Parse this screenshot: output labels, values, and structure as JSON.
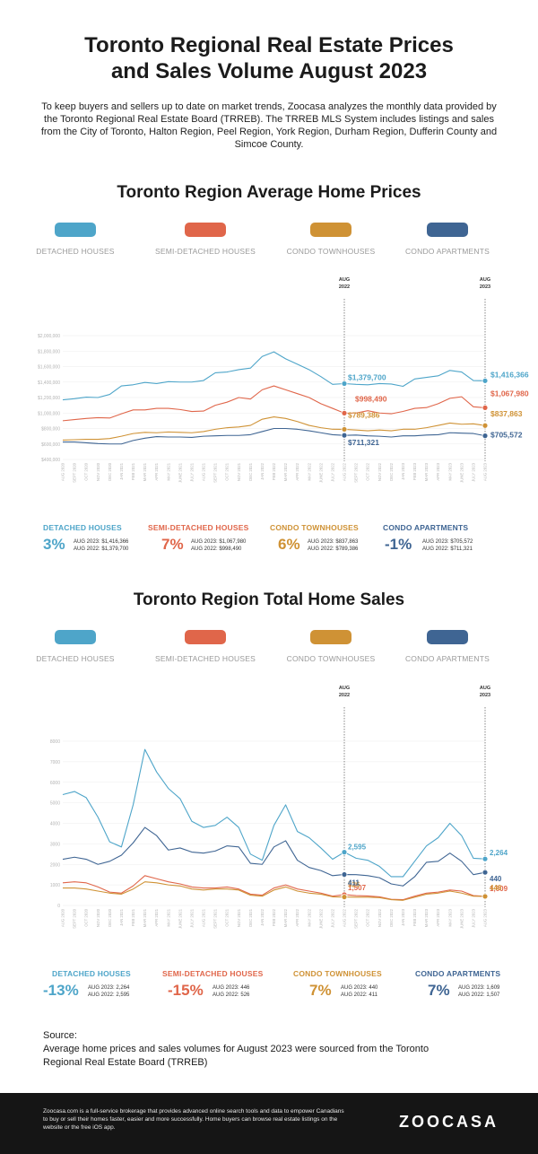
{
  "header": {
    "title_line1": "Toronto Regional Real Estate Prices",
    "title_line2": "and Sales Volume August 2023",
    "intro": "To keep buyers and sellers up to date on market trends, Zoocasa analyzes the monthly data provided by the Toronto Regional Real Estate Board (TRREB). The TRREB MLS System includes listings and sales from the City of Toronto, Halton Region, Peel Region, York Region, Durham Region, Dufferin County and Simcoe County."
  },
  "colors": {
    "detached": "#4ea5c9",
    "semi": "#e0664a",
    "condo_town": "#cf9235",
    "condo_apt": "#3f6593"
  },
  "legend": [
    {
      "key": "detached",
      "label": "DETACHED HOUSES"
    },
    {
      "key": "semi",
      "label": "SEMI-DETACHED HOUSES"
    },
    {
      "key": "condo_town",
      "label": "CONDO TOWNHOUSES"
    },
    {
      "key": "condo_apt",
      "label": "CONDO APARTMENTS"
    }
  ],
  "prices": {
    "title": "Toronto Region Average Home Prices",
    "markers": [
      {
        "label_line1": "AUG",
        "label_line2": "2022"
      },
      {
        "label_line1": "AUG",
        "label_line2": "2023"
      }
    ],
    "stats": [
      {
        "key": "detached",
        "name": "DETACHED HOUSES",
        "pct": "3%",
        "line1": "AUG 2023:  $1,416,366",
        "line2": "AUG 2022:  $1,379,700"
      },
      {
        "key": "semi",
        "name": "SEMI-DETACHED HOUSES",
        "pct": "7%",
        "line1": "AUG 2023:  $1,067,980",
        "line2": "AUG 2022:  $998,490"
      },
      {
        "key": "condo_town",
        "name": "CONDO TOWNHOUSES",
        "pct": "6%",
        "line1": "AUG 2023:  $837,863",
        "line2": "AUG 2022:  $789,386"
      },
      {
        "key": "condo_apt",
        "name": "CONDO APARTMENTS",
        "pct": "-1%",
        "line1": "AUG 2023:  $705,572",
        "line2": "AUG 2022:  $711,321"
      }
    ]
  },
  "sales": {
    "title": "Toronto Region Total Home Sales",
    "markers": [
      {
        "label_line1": "AUG",
        "label_line2": "2022"
      },
      {
        "label_line1": "AUG",
        "label_line2": "2023"
      }
    ],
    "stats": [
      {
        "key": "detached",
        "name": "DETACHED HOUSES",
        "pct": "-13%",
        "line1": "AUG 2023:  2,264",
        "line2": "AUG 2022:  2,595"
      },
      {
        "key": "semi",
        "name": "SEMI-DETACHED HOUSES",
        "pct": "-15%",
        "line1": "AUG 2023:  446",
        "line2": "AUG 2022:  526"
      },
      {
        "key": "condo_town",
        "name": "CONDO TOWNHOUSES",
        "pct": "7%",
        "line1": "AUG 2023:  440",
        "line2": "AUG 2022:  411"
      },
      {
        "key": "condo_apt",
        "name": "CONDO APARTMENTS",
        "pct": "7%",
        "line1": "AUG 2023:  1,609",
        "line2": "AUG 2022:  1,507"
      }
    ]
  },
  "source": {
    "label": "Source:",
    "text": "Average home prices and sales volumes for August 2023 were sourced from the Toronto Regional Real Estate Board (TRREB)"
  },
  "footer": {
    "text": "Zoocasa.com is a full-service brokerage that provides advanced online search tools and data to empower Canadians to buy or sell their homes faster, easier and more successfully. Home buyers can browse real estate listings on the website or the free iOS app.",
    "logo": "ZOOCASA"
  },
  "chart_data": [
    {
      "type": "line",
      "title": "Toronto Region Average Home Prices",
      "x": [
        "AUG 2020",
        "SEPT 2020",
        "OCT 2020",
        "NOV 2020",
        "DEC 2020",
        "JAN 2021",
        "FEB 2021",
        "MAR 2021",
        "APR 2021",
        "MAY 2021",
        "JUNE 2021",
        "JULY 2021",
        "AUG 2021",
        "SEPT 2021",
        "OCT 2021",
        "NOV 2021",
        "DEC 2021",
        "JAN 2022",
        "FEB 2022",
        "MAR 2022",
        "APR 2022",
        "MAY 2022",
        "JUNE 2022",
        "JULY 2022",
        "AUG 2022",
        "SEPT 2022",
        "OCT 2022",
        "NOV 2022",
        "DEC 2022",
        "JAN 2023",
        "FEB 2023",
        "MAR 2023",
        "APR 2023",
        "MAY 2023",
        "JUNE 2023",
        "JULY 2023",
        "AUG 2023"
      ],
      "y_ticks": [
        "$400,000",
        "$600,000",
        "$800,000",
        "$1,000,000",
        "$1,200,000",
        "$1,400,000",
        "$1,600,000",
        "$1,800,000",
        "$2,000,000"
      ],
      "ylim": [
        400000,
        2000000
      ],
      "series": [
        {
          "name": "DETACHED HOUSES",
          "key": "detached",
          "values": [
            1170000,
            1185000,
            1205000,
            1200000,
            1240000,
            1350000,
            1365000,
            1395000,
            1380000,
            1405000,
            1400000,
            1400000,
            1420000,
            1520000,
            1530000,
            1560000,
            1580000,
            1730000,
            1790000,
            1700000,
            1630000,
            1560000,
            1470000,
            1370000,
            1379700,
            1370000,
            1365000,
            1380000,
            1375000,
            1345000,
            1440000,
            1460000,
            1480000,
            1550000,
            1530000,
            1420000,
            1416366
          ]
        },
        {
          "name": "SEMI-DETACHED HOUSES",
          "key": "semi",
          "values": [
            900000,
            915000,
            930000,
            940000,
            935000,
            990000,
            1040000,
            1040000,
            1060000,
            1060000,
            1045000,
            1020000,
            1025000,
            1100000,
            1140000,
            1200000,
            1180000,
            1300000,
            1350000,
            1300000,
            1250000,
            1200000,
            1120000,
            1060000,
            998490,
            1000000,
            1030000,
            1000000,
            990000,
            1020000,
            1060000,
            1070000,
            1120000,
            1190000,
            1210000,
            1080000,
            1067980
          ]
        },
        {
          "name": "CONDO TOWNHOUSES",
          "key": "condo_town",
          "values": [
            650000,
            655000,
            660000,
            660000,
            670000,
            700000,
            735000,
            750000,
            745000,
            755000,
            750000,
            745000,
            760000,
            790000,
            810000,
            820000,
            840000,
            920000,
            950000,
            930000,
            890000,
            840000,
            810000,
            790000,
            789386,
            780000,
            770000,
            780000,
            770000,
            790000,
            790000,
            810000,
            840000,
            870000,
            855000,
            860000,
            837863
          ]
        },
        {
          "name": "CONDO APARTMENTS",
          "key": "condo_apt",
          "values": [
            625000,
            625000,
            615000,
            605000,
            600000,
            600000,
            645000,
            675000,
            695000,
            690000,
            690000,
            685000,
            700000,
            705000,
            710000,
            710000,
            720000,
            760000,
            800000,
            800000,
            790000,
            770000,
            745000,
            720000,
            711321,
            715000,
            705000,
            700000,
            690000,
            705000,
            705000,
            715000,
            720000,
            745000,
            740000,
            735000,
            705572
          ]
        }
      ],
      "labels_aug2022": [
        "$1,379,700",
        "$998,490",
        "$789,386",
        "$711,321"
      ],
      "labels_aug2023": [
        "$1,416,366",
        "$1,067,980",
        "$837,863",
        "$705,572"
      ]
    },
    {
      "type": "line",
      "title": "Toronto Region Total Home Sales",
      "x": [
        "AUG 2020",
        "SEPT 2020",
        "OCT 2020",
        "NOV 2020",
        "DEC 2020",
        "JAN 2021",
        "FEB 2021",
        "MAR 2021",
        "APR 2021",
        "MAY 2021",
        "JUNE 2021",
        "JULY 2021",
        "AUG 2021",
        "SEPT 2021",
        "OCT 2021",
        "NOV 2021",
        "DEC 2021",
        "JAN 2022",
        "FEB 2022",
        "MAR 2022",
        "APR 2022",
        "MAY 2022",
        "JUNE 2022",
        "JULY 2022",
        "AUG 2022",
        "SEPT 2022",
        "OCT 2022",
        "NOV 2022",
        "DEC 2022",
        "JAN 2023",
        "FEB 2023",
        "MAR 2023",
        "APR 2023",
        "MAY 2023",
        "JUNE 2023",
        "JULY 2023",
        "AUG 2023"
      ],
      "y_ticks": [
        "0",
        "1000",
        "2000",
        "3000",
        "4000",
        "5000",
        "6000",
        "7000",
        "8000"
      ],
      "ylim": [
        0,
        8000
      ],
      "series": [
        {
          "name": "DETACHED HOUSES",
          "key": "detached",
          "values": [
            5400,
            5550,
            5250,
            4300,
            3100,
            2850,
            4900,
            7600,
            6500,
            5700,
            5200,
            4100,
            3800,
            3900,
            4300,
            3800,
            2500,
            2200,
            3900,
            4900,
            3600,
            3300,
            2800,
            2250,
            2595,
            2300,
            2200,
            1900,
            1400,
            1400,
            2150,
            2900,
            3300,
            4000,
            3400,
            2300,
            2264
          ]
        },
        {
          "name": "SEMI-DETACHED HOUSES",
          "key": "semi",
          "values": [
            1100,
            1150,
            1100,
            900,
            650,
            600,
            950,
            1450,
            1300,
            1150,
            1050,
            900,
            850,
            850,
            900,
            800,
            550,
            500,
            850,
            1000,
            800,
            700,
            600,
            450,
            526,
            480,
            460,
            420,
            300,
            280,
            450,
            600,
            650,
            750,
            700,
            480,
            446
          ]
        },
        {
          "name": "CONDO TOWNHOUSES",
          "key": "condo_town",
          "values": [
            850,
            850,
            800,
            700,
            600,
            550,
            800,
            1150,
            1100,
            1000,
            950,
            800,
            750,
            800,
            800,
            750,
            500,
            450,
            750,
            900,
            700,
            600,
            550,
            420,
            411,
            400,
            400,
            380,
            280,
            250,
            400,
            550,
            600,
            700,
            600,
            450,
            440
          ]
        },
        {
          "name": "CONDO APARTMENTS",
          "key": "condo_apt",
          "values": [
            2250,
            2350,
            2250,
            2000,
            2150,
            2450,
            3050,
            3800,
            3400,
            2700,
            2800,
            2600,
            2550,
            2650,
            2900,
            2850,
            2050,
            2000,
            2850,
            3150,
            2200,
            1850,
            1700,
            1450,
            1507,
            1500,
            1450,
            1350,
            1050,
            950,
            1400,
            2100,
            2150,
            2550,
            2150,
            1500,
            1609
          ]
        }
      ],
      "labels_aug2022": [
        "2,595",
        "1,507",
        "526",
        "411"
      ],
      "labels_aug2023": [
        "2,264",
        "1,609",
        "446",
        "440"
      ]
    }
  ]
}
